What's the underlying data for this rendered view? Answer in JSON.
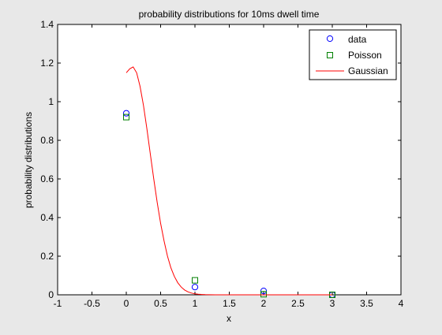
{
  "chart_data": {
    "type": "scatter",
    "title": "probability distributions for 10ms dwell time",
    "xlabel": "x",
    "ylabel": "probability distributions",
    "xlim": [
      -1,
      4
    ],
    "ylim": [
      0,
      1.4
    ],
    "xticks": [
      "-1",
      "-0.5",
      "0",
      "0.5",
      "1",
      "1.5",
      "2",
      "2.5",
      "3",
      "3.5",
      "4"
    ],
    "yticks": [
      "0",
      "0.2",
      "0.4",
      "0.6",
      "0.8",
      "1",
      "1.2",
      "1.4"
    ],
    "grid": false,
    "legend_position": "top-right",
    "series": [
      {
        "name": "data",
        "marker": "circle",
        "color": "#0000ff",
        "x": [
          0,
          1,
          2,
          3
        ],
        "y": [
          0.94,
          0.04,
          0.02,
          0.0
        ]
      },
      {
        "name": "Poisson",
        "marker": "square",
        "color": "#008000",
        "x": [
          0,
          1,
          2,
          3
        ],
        "y": [
          0.92,
          0.075,
          0.003,
          0.0
        ]
      },
      {
        "name": "Gaussian",
        "marker": "line",
        "color": "#ff0000",
        "x": [
          0,
          0.05,
          0.1,
          0.15,
          0.2,
          0.25,
          0.3,
          0.35,
          0.4,
          0.45,
          0.5,
          0.55,
          0.6,
          0.65,
          0.7,
          0.75,
          0.8,
          0.85,
          0.9,
          0.95,
          1.0,
          1.05,
          1.1,
          1.15,
          1.2,
          1.3,
          1.5,
          2.0,
          2.5,
          3.0
        ],
        "y": [
          1.15,
          1.17,
          1.18,
          1.15,
          1.08,
          0.98,
          0.86,
          0.73,
          0.6,
          0.48,
          0.37,
          0.28,
          0.2,
          0.14,
          0.095,
          0.062,
          0.04,
          0.025,
          0.015,
          0.009,
          0.005,
          0.003,
          0.0015,
          0.0008,
          0.0004,
          0.0,
          0.0,
          0.0,
          0.0,
          0.0
        ]
      }
    ]
  }
}
